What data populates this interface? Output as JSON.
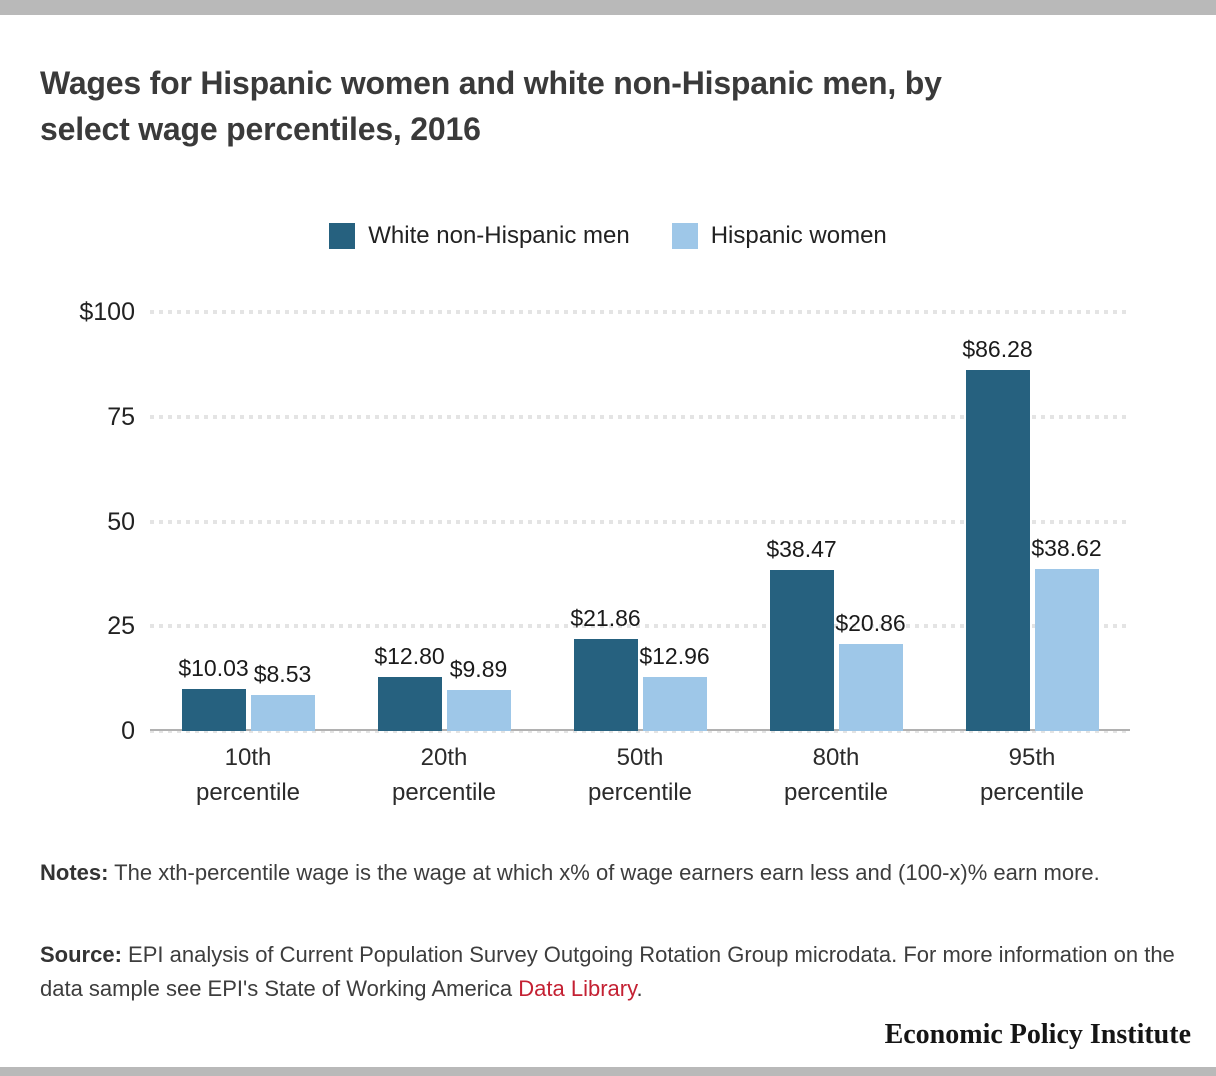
{
  "page": {
    "title_lines": {
      "line1": "Wages for Hispanic women and white non-Hispanic men, by",
      "line2": "select wage percentiles, 2016"
    },
    "branding": "Economic Policy Institute"
  },
  "colors": {
    "series_dark_blue": "#26617f",
    "series_light_blue": "#9ec7e8",
    "edge_bar_gray": "#b9b9b9",
    "gridline_gray": "#e4e4e4",
    "link_red": "#c42133"
  },
  "legend": {
    "items": [
      {
        "label": "White non-Hispanic men",
        "color": "#26617f"
      },
      {
        "label": "Hispanic women",
        "color": "#9ec7e8"
      }
    ]
  },
  "chart_data": {
    "type": "bar",
    "title": "Wages for Hispanic women and white non-Hispanic men, by select wage percentiles, 2016",
    "categories": [
      "10th percentile",
      "20th percentile",
      "50th percentile",
      "80th percentile",
      "95th percentile"
    ],
    "categories_lines": [
      [
        "10th",
        "percentile"
      ],
      [
        "20th",
        "percentile"
      ],
      [
        "50th",
        "percentile"
      ],
      [
        "80th",
        "percentile"
      ],
      [
        "95th",
        "percentile"
      ]
    ],
    "series": [
      {
        "name": "White non-Hispanic men",
        "color": "#26617f",
        "values": [
          10.03,
          12.8,
          21.86,
          38.47,
          86.28
        ],
        "labels": [
          "$10.03",
          "$12.80",
          "$21.86",
          "$38.47",
          "$86.28"
        ]
      },
      {
        "name": "Hispanic women",
        "color": "#9ec7e8",
        "values": [
          8.53,
          9.89,
          12.96,
          20.86,
          38.62
        ],
        "labels": [
          "$8.53",
          "$9.89",
          "$12.96",
          "$20.86",
          "$38.62"
        ]
      }
    ],
    "xlabel": "",
    "ylabel": "",
    "ylim": [
      0,
      100
    ],
    "yticks": [
      {
        "label": "$100",
        "value": 100
      },
      {
        "label": "75",
        "value": 75
      },
      {
        "label": "50",
        "value": 50
      },
      {
        "label": "25",
        "value": 25
      },
      {
        "label": "0",
        "value": 0
      }
    ],
    "grid": "horizontal-dotted",
    "legend_position": "top-center"
  },
  "notes": {
    "label": "Notes:",
    "text": " The xth-percentile wage is the wage at which x% of wage earners earn less and (100-x)% earn more."
  },
  "source": {
    "label": "Source:",
    "text_before_link": " EPI analysis of Current Population Survey Outgoing Rotation Group microdata. For more information on the data sample see EPI's State of Working America ",
    "link": "Data Library",
    "text_after_link": "."
  }
}
